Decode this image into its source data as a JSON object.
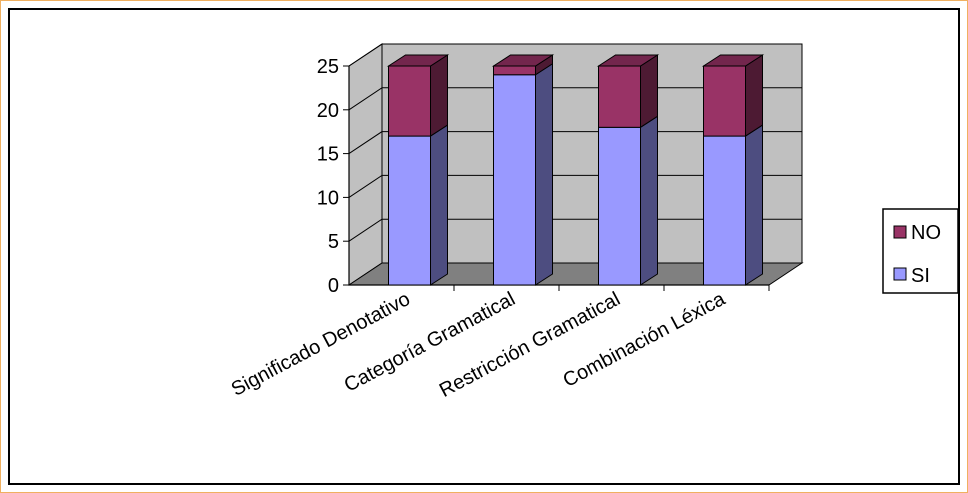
{
  "chart_data": {
    "type": "bar",
    "stacked": true,
    "three_d": true,
    "categories": [
      "Significado Denotativo",
      "Categoría Gramatical",
      "Restricción Gramatical",
      "Combinación Léxica"
    ],
    "series": [
      {
        "name": "SI",
        "values": [
          17,
          24,
          18,
          17
        ],
        "color": "#9999ff"
      },
      {
        "name": "NO",
        "values": [
          8,
          1,
          7,
          8
        ],
        "color": "#993366"
      }
    ],
    "yticks": [
      0,
      5,
      10,
      15,
      20,
      25
    ],
    "ylim": [
      0,
      25
    ],
    "grid": true,
    "legend_position": "right",
    "colors": {
      "wall": "#c0c0c0",
      "floor": "#808080",
      "frame_border": "#f0b060"
    }
  }
}
